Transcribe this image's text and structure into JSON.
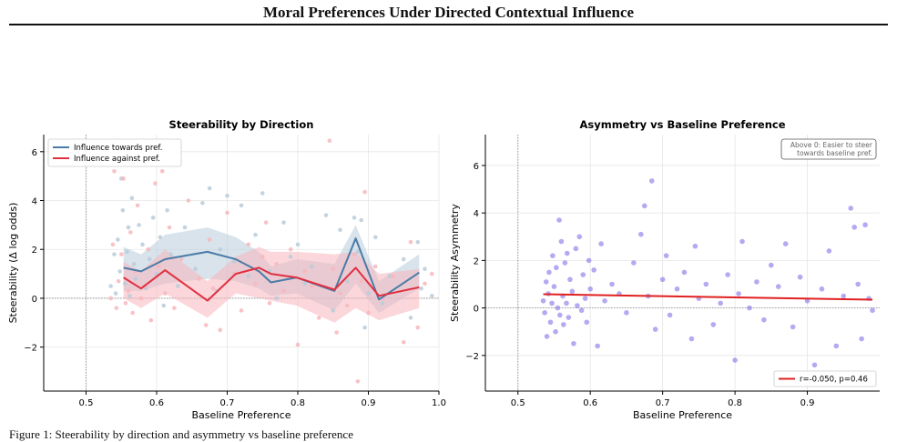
{
  "page": {
    "title": "Moral Preferences Under Directed Contextual Influence",
    "caption": "Figure 1: Steerability by direction and asymmetry vs baseline preference"
  },
  "colors": {
    "towards": "#4a7ba6",
    "against": "#e03040",
    "towards_band": "#b8ccda",
    "against_band": "#f7b7bd",
    "scatter_purple": "#8470e8",
    "fit_line": "#e02020"
  },
  "chart_data": [
    {
      "type": "line",
      "title": "Steerability by Direction",
      "xlabel": "Baseline Preference",
      "ylabel": "Steerability (Δ log odds)",
      "xlim": [
        0.44,
        1.0
      ],
      "ylim": [
        -3.8,
        6.7
      ],
      "xticks": [
        0.5,
        0.6,
        0.7,
        0.8,
        0.9,
        1.0
      ],
      "xtick_labels": [
        "0.5",
        "0.6",
        "0.7",
        "0.8",
        "0.9",
        "1.0"
      ],
      "yticks": [
        -2,
        0,
        2,
        4,
        6
      ],
      "ytick_labels": [
        "−2",
        "0",
        "2",
        "4",
        "6"
      ],
      "grid": true,
      "legend_position": "top-left",
      "x": [
        0.553,
        0.578,
        0.612,
        0.672,
        0.712,
        0.745,
        0.762,
        0.798,
        0.852,
        0.882,
        0.915,
        0.972
      ],
      "series": [
        {
          "name": "Influence towards pref.",
          "values": [
            1.25,
            1.1,
            1.6,
            1.9,
            1.6,
            1.1,
            0.65,
            0.85,
            0.3,
            2.45,
            -0.05,
            1.05
          ],
          "band_lower": [
            0.3,
            0.3,
            0.6,
            0.8,
            0.7,
            0.4,
            0.1,
            0.2,
            -0.5,
            0.6,
            -0.6,
            0.4
          ],
          "band_upper": [
            2.1,
            1.8,
            2.6,
            2.9,
            2.5,
            1.9,
            1.3,
            1.6,
            1.4,
            3.0,
            0.7,
            1.8
          ]
        },
        {
          "name": "Influence against pref.",
          "values": [
            0.85,
            0.4,
            1.15,
            -0.1,
            1.0,
            1.25,
            1.0,
            0.85,
            0.35,
            1.25,
            0.1,
            0.45
          ],
          "band_lower": [
            0.0,
            -0.4,
            0.2,
            -0.8,
            0.2,
            0.0,
            -0.1,
            -0.3,
            -1.0,
            -0.4,
            -0.9,
            -0.4
          ],
          "band_upper": [
            1.5,
            1.1,
            2.0,
            0.7,
            1.7,
            2.1,
            1.9,
            1.9,
            1.8,
            1.9,
            1.0,
            1.2
          ]
        }
      ],
      "scatter_towards": {
        "x": [
          0.535,
          0.54,
          0.542,
          0.545,
          0.548,
          0.55,
          0.552,
          0.555,
          0.558,
          0.56,
          0.562,
          0.565,
          0.568,
          0.57,
          0.575,
          0.58,
          0.585,
          0.59,
          0.595,
          0.6,
          0.605,
          0.61,
          0.615,
          0.62,
          0.63,
          0.64,
          0.655,
          0.665,
          0.675,
          0.685,
          0.69,
          0.7,
          0.71,
          0.72,
          0.73,
          0.74,
          0.75,
          0.76,
          0.77,
          0.78,
          0.79,
          0.8,
          0.81,
          0.82,
          0.84,
          0.85,
          0.86,
          0.87,
          0.88,
          0.885,
          0.89,
          0.895,
          0.9,
          0.91,
          0.92,
          0.93,
          0.95,
          0.96,
          0.97,
          0.975,
          0.98,
          0.99
        ],
        "y": [
          0.5,
          1.8,
          0.2,
          2.4,
          1.1,
          4.9,
          3.6,
          0.6,
          1.9,
          2.9,
          0.1,
          4.1,
          1.4,
          0.8,
          3.0,
          2.2,
          0.4,
          1.6,
          3.3,
          1.0,
          2.5,
          -0.3,
          3.6,
          1.8,
          0.5,
          2.9,
          1.2,
          3.9,
          4.5,
          0.3,
          2.0,
          4.2,
          1.5,
          3.8,
          0.9,
          2.6,
          4.3,
          1.1,
          0.0,
          3.1,
          1.7,
          2.2,
          0.6,
          1.3,
          3.4,
          -0.5,
          2.8,
          0.7,
          3.3,
          1.9,
          3.2,
          -1.2,
          0.2,
          2.5,
          -0.2,
          0.9,
          1.6,
          -0.8,
          2.3,
          0.4,
          1.2,
          0.1
        ]
      },
      "scatter_against": {
        "x": [
          0.535,
          0.538,
          0.54,
          0.543,
          0.546,
          0.55,
          0.553,
          0.556,
          0.56,
          0.563,
          0.566,
          0.57,
          0.573,
          0.578,
          0.583,
          0.588,
          0.592,
          0.598,
          0.603,
          0.608,
          0.612,
          0.618,
          0.625,
          0.635,
          0.645,
          0.66,
          0.67,
          0.675,
          0.68,
          0.69,
          0.7,
          0.71,
          0.72,
          0.73,
          0.74,
          0.75,
          0.755,
          0.76,
          0.77,
          0.78,
          0.79,
          0.8,
          0.81,
          0.82,
          0.83,
          0.845,
          0.85,
          0.855,
          0.86,
          0.87,
          0.88,
          0.885,
          0.89,
          0.895,
          0.9,
          0.91,
          0.92,
          0.935,
          0.95,
          0.96,
          0.97,
          0.98,
          0.99
        ],
        "y": [
          0.0,
          2.2,
          5.2,
          -0.4,
          0.7,
          1.8,
          4.9,
          -0.2,
          0.3,
          2.7,
          -0.6,
          1.1,
          3.8,
          0.0,
          0.5,
          2.0,
          -0.9,
          4.7,
          1.3,
          5.2,
          0.2,
          2.9,
          -0.4,
          1.6,
          4.0,
          0.8,
          -1.1,
          2.4,
          0.4,
          -1.3,
          3.5,
          1.0,
          -0.5,
          2.2,
          0.6,
          1.7,
          3.1,
          -0.2,
          1.4,
          0.3,
          2.0,
          -1.9,
          1.1,
          0.5,
          -0.8,
          6.45,
          1.2,
          -1.4,
          0.2,
          -0.3,
          1.8,
          -3.4,
          0.7,
          4.35,
          -0.6,
          1.3,
          0.0,
          0.9,
          -1.8,
          2.3,
          -1.2,
          0.6,
          1.0
        ]
      }
    },
    {
      "type": "scatter",
      "title": "Asymmetry vs Baseline Preference",
      "xlabel": "Baseline Preference",
      "ylabel": "Steerability Asymmetry",
      "xlim": [
        0.455,
        1.0
      ],
      "ylim": [
        -3.5,
        7.3
      ],
      "xticks": [
        0.5,
        0.6,
        0.7,
        0.8,
        0.9
      ],
      "xtick_labels": [
        "0.5",
        "0.6",
        "0.7",
        "0.8",
        "0.9"
      ],
      "yticks": [
        -2,
        0,
        2,
        4,
        6
      ],
      "ytick_labels": [
        "−2",
        "0",
        "2",
        "4",
        "6"
      ],
      "grid": true,
      "annotation_lines": [
        "Above 0: Easier to steer",
        "towards baseline pref."
      ],
      "legend_position": "bottom-right",
      "fit": {
        "name": "r=-0.050, p=0.46",
        "x": [
          0.535,
          0.99
        ],
        "y": [
          0.58,
          0.35
        ]
      },
      "points": {
        "x": [
          0.535,
          0.537,
          0.539,
          0.54,
          0.542,
          0.543,
          0.545,
          0.547,
          0.548,
          0.55,
          0.552,
          0.553,
          0.555,
          0.557,
          0.558,
          0.56,
          0.562,
          0.563,
          0.565,
          0.567,
          0.568,
          0.57,
          0.572,
          0.575,
          0.577,
          0.58,
          0.582,
          0.585,
          0.588,
          0.59,
          0.593,
          0.595,
          0.598,
          0.6,
          0.605,
          0.61,
          0.615,
          0.62,
          0.63,
          0.64,
          0.65,
          0.66,
          0.67,
          0.675,
          0.68,
          0.685,
          0.69,
          0.7,
          0.705,
          0.71,
          0.72,
          0.73,
          0.74,
          0.745,
          0.75,
          0.76,
          0.77,
          0.78,
          0.79,
          0.8,
          0.805,
          0.81,
          0.82,
          0.83,
          0.84,
          0.85,
          0.86,
          0.87,
          0.88,
          0.89,
          0.9,
          0.91,
          0.92,
          0.93,
          0.94,
          0.95,
          0.96,
          0.965,
          0.97,
          0.975,
          0.98,
          0.985,
          0.99
        ],
        "y": [
          0.3,
          -0.2,
          1.1,
          -1.2,
          0.6,
          1.5,
          -0.6,
          0.2,
          2.2,
          0.9,
          -1.0,
          1.7,
          0.0,
          3.7,
          -0.3,
          2.8,
          0.5,
          -0.7,
          1.9,
          0.2,
          2.3,
          -0.4,
          1.2,
          0.7,
          -1.5,
          2.5,
          0.1,
          3.0,
          -0.1,
          1.4,
          0.4,
          -0.6,
          2.0,
          0.8,
          1.6,
          -1.6,
          2.7,
          0.3,
          1.0,
          0.6,
          -0.2,
          1.9,
          3.1,
          4.3,
          0.5,
          5.35,
          -0.9,
          1.2,
          2.2,
          -0.3,
          0.8,
          1.5,
          -1.3,
          2.6,
          0.4,
          1.0,
          -0.7,
          0.2,
          1.4,
          -2.2,
          0.6,
          2.8,
          0.0,
          1.1,
          -0.5,
          1.8,
          0.9,
          2.7,
          -0.8,
          1.3,
          0.3,
          -2.4,
          0.8,
          2.4,
          -1.6,
          0.5,
          4.2,
          3.4,
          1.0,
          -1.3,
          3.5,
          0.4,
          -0.1
        ]
      }
    }
  ]
}
